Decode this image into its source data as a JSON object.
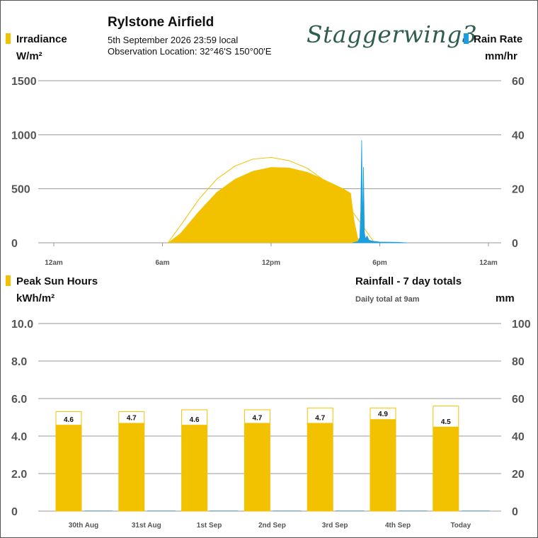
{
  "header": {
    "station": "Rylstone Airfield",
    "datetime": "5th September 2026  23:59 local",
    "location": "Observation Location:  32°46'S 150°00'E",
    "logo": "Staggerwing3"
  },
  "colors": {
    "irradiance": "#f2c200",
    "rain": "#1a9ee0",
    "grid": "#9a9a9a",
    "axis_text": "#555555",
    "clear_sky": "#f2c200"
  },
  "top_chart": {
    "left_title": "Irradiance",
    "left_unit": "W/m²",
    "right_title": "Rain Rate",
    "right_unit": "mm/hr"
  },
  "bottom_chart": {
    "left_title": "Peak Sun Hours",
    "left_unit": "kWh/m²",
    "right_title": "Rainfall - 7 day totals",
    "right_note": "Daily total at 9am",
    "right_unit": "mm"
  },
  "chart_data": [
    {
      "type": "area",
      "ylim": [
        0,
        1500
      ],
      "y2lim": [
        0,
        60
      ],
      "yticks": [
        "0",
        "500",
        "1000",
        "1500"
      ],
      "y2ticks": [
        "0",
        "20",
        "40",
        "60"
      ],
      "xlim": [
        0,
        24
      ],
      "xticks": [
        {
          "pos": 0,
          "label": "12am"
        },
        {
          "pos": 6,
          "label": "6am"
        },
        {
          "pos": 12,
          "label": "12pm"
        },
        {
          "pos": 18,
          "label": "6pm"
        },
        {
          "pos": 24,
          "label": "12am"
        }
      ],
      "grid": true,
      "series": [
        {
          "axis": "left",
          "x": [
            6.3,
            7.0,
            8.0,
            9.0,
            10.0,
            11.0,
            12.0,
            13.0,
            14.0,
            14.5,
            15.0,
            15.5,
            16.0,
            16.4,
            16.6,
            16.8,
            17.0
          ],
          "values": [
            0,
            90,
            290,
            470,
            590,
            665,
            700,
            695,
            655,
            620,
            580,
            540,
            500,
            460,
            200,
            40,
            0
          ]
        },
        {
          "axis": "left",
          "x": [
            6.3,
            7.0,
            8.0,
            9.0,
            10.0,
            11.0,
            12.0,
            13.0,
            14.0,
            15.0,
            16.0,
            17.0,
            17.7
          ],
          "values": [
            0,
            160,
            400,
            590,
            710,
            775,
            790,
            760,
            690,
            570,
            400,
            170,
            0
          ]
        },
        {
          "axis": "right",
          "x": [
            16.5,
            16.8,
            16.9,
            16.95,
            17.0,
            17.05,
            17.1,
            17.15,
            17.2,
            17.3,
            17.4,
            17.6,
            18.0,
            19.0,
            19.5
          ],
          "values": [
            0,
            0.5,
            2,
            12,
            38,
            5,
            28,
            4,
            1.5,
            2.5,
            1,
            0.6,
            0.3,
            0.2,
            0
          ]
        }
      ]
    },
    {
      "type": "bar",
      "categories": [
        "30th Aug",
        "31st Aug",
        "1st Sep",
        "2nd Sep",
        "3rd Sep",
        "4th Sep",
        "Today"
      ],
      "ylim": [
        0,
        10
      ],
      "y2lim": [
        0,
        100
      ],
      "yticks": [
        "0",
        "2.0",
        "4.0",
        "6.0",
        "8.0",
        "10.0"
      ],
      "y2ticks": [
        "0",
        "20",
        "40",
        "60",
        "80",
        "100"
      ],
      "grid": true,
      "series": [
        {
          "axis": "left",
          "values": [
            4.6,
            4.7,
            4.6,
            4.7,
            4.7,
            4.9,
            4.5
          ],
          "labels": [
            "4.6",
            "4.7",
            "4.6",
            "4.7",
            "4.7",
            "4.9",
            "4.5"
          ]
        },
        {
          "axis": "left",
          "values": [
            5.3,
            5.3,
            5.4,
            5.4,
            5.5,
            5.5,
            5.6
          ]
        },
        {
          "axis": "right",
          "values": [
            0,
            0,
            0,
            0,
            0,
            0,
            0
          ]
        }
      ]
    }
  ]
}
